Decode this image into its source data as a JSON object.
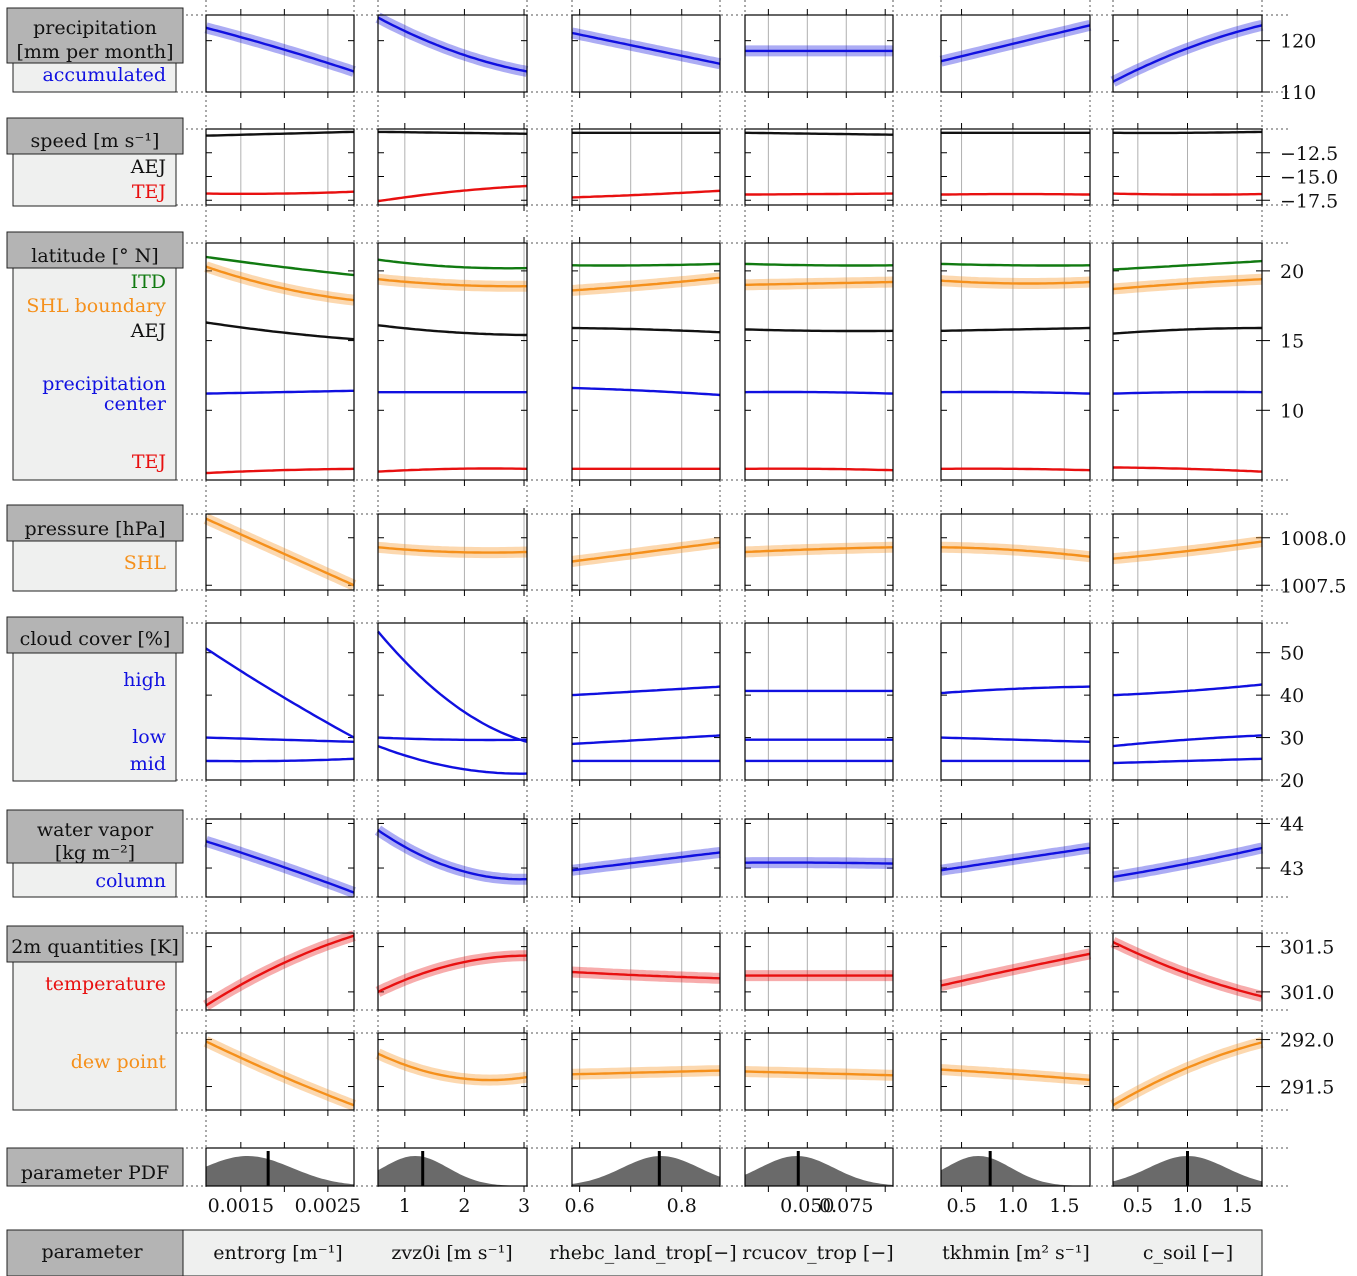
{
  "colors": {
    "blue": "#1010e0",
    "red": "#e81010",
    "green": "#117a11",
    "orange": "#f5901b",
    "black": "#111111",
    "gray": "#6a6a6a",
    "header_bg": "#b4b4b4",
    "panel_bg": "#eff0ef"
  },
  "groups": [
    {
      "id": "precip",
      "title": [
        "precipitation",
        "[mm per month]"
      ],
      "sublabels": [
        {
          "text": "accumulated",
          "color": "blue"
        }
      ]
    },
    {
      "id": "speed",
      "title": [
        "speed [m s⁻¹]"
      ],
      "sublabels": [
        {
          "text": "AEJ",
          "color": "black"
        },
        {
          "text": "TEJ",
          "color": "red"
        }
      ]
    },
    {
      "id": "lat",
      "title": [
        "latitude [° N]"
      ],
      "sublabels": [
        {
          "text": "ITD",
          "color": "green"
        },
        {
          "text": "SHL boundary",
          "color": "orange"
        },
        {
          "text": "AEJ",
          "color": "black"
        },
        {
          "text": "precipitation",
          "color": "blue"
        },
        {
          "text": "center",
          "color": "blue"
        },
        {
          "text": "TEJ",
          "color": "red"
        }
      ]
    },
    {
      "id": "pres",
      "title": [
        "pressure [hPa]"
      ],
      "sublabels": [
        {
          "text": "SHL",
          "color": "orange"
        }
      ]
    },
    {
      "id": "cloud",
      "title": [
        "cloud cover [%]"
      ],
      "sublabels": [
        {
          "text": "high",
          "color": "blue"
        },
        {
          "text": "low",
          "color": "blue"
        },
        {
          "text": "mid",
          "color": "blue"
        }
      ]
    },
    {
      "id": "wv",
      "title": [
        "water vapor",
        "[kg m⁻²]"
      ],
      "sublabels": [
        {
          "text": "column",
          "color": "blue"
        }
      ]
    },
    {
      "id": "t2m",
      "title": [
        "2m quantities [K]"
      ],
      "sublabels": [
        {
          "text": "temperature",
          "color": "red"
        },
        {
          "text": "dew point",
          "color": "orange"
        }
      ]
    },
    {
      "id": "pdf",
      "title": [
        "parameter PDF"
      ],
      "sublabels": []
    }
  ],
  "bottom_bar": {
    "label": "parameter",
    "params": [
      "entrorg [m⁻¹]",
      "zvz0i [m s⁻¹]",
      "rhebc_land_trop[−]",
      "rcucov_trop [−]",
      "tkhmin [m² s⁻¹]",
      "c_soil [−]"
    ]
  },
  "chart_data": [
    {
      "type": "line",
      "panel": "precipitation",
      "ylim": [
        110,
        125
      ],
      "yticks": [
        110,
        120
      ],
      "series": [
        {
          "color": "blue",
          "band": true,
          "values": [
            [
              122.5,
              118.5,
              114.0
            ],
            [
              124.5,
              118.0,
              114.0
            ],
            [
              121.5,
              118.5,
              115.5
            ],
            [
              118.0,
              118.0,
              118.0
            ],
            [
              116.0,
              119.5,
              123.0
            ],
            [
              112.0,
              118.5,
              123.0
            ]
          ]
        }
      ]
    },
    {
      "type": "line",
      "panel": "speed",
      "ylim": [
        -18,
        -10
      ],
      "yticks": [
        -12.5,
        -15.0,
        -17.5
      ],
      "series": [
        {
          "color": "black",
          "values": [
            [
              -10.7,
              -10.5,
              -10.3
            ],
            [
              -10.3,
              -10.4,
              -10.5
            ],
            [
              -10.4,
              -10.4,
              -10.4
            ],
            [
              -10.4,
              -10.5,
              -10.6
            ],
            [
              -10.4,
              -10.4,
              -10.4
            ],
            [
              -10.4,
              -10.4,
              -10.3
            ]
          ]
        },
        {
          "color": "red",
          "values": [
            [
              -16.8,
              -16.8,
              -16.6
            ],
            [
              -17.6,
              -16.6,
              -16.0
            ],
            [
              -17.2,
              -16.9,
              -16.5
            ],
            [
              -16.9,
              -16.85,
              -16.8
            ],
            [
              -16.9,
              -16.85,
              -16.9
            ],
            [
              -16.8,
              -16.9,
              -16.85
            ]
          ]
        }
      ]
    },
    {
      "type": "line",
      "panel": "latitude",
      "ylim": [
        5,
        22
      ],
      "yticks": [
        10,
        15,
        20
      ],
      "series": [
        {
          "color": "green",
          "values": [
            [
              21.0,
              20.3,
              19.7
            ],
            [
              20.8,
              20.3,
              20.2
            ],
            [
              20.4,
              20.4,
              20.5
            ],
            [
              20.5,
              20.4,
              20.4
            ],
            [
              20.5,
              20.4,
              20.4
            ],
            [
              20.1,
              20.4,
              20.7
            ]
          ]
        },
        {
          "color": "orange",
          "band": true,
          "values": [
            [
              20.3,
              18.8,
              17.9
            ],
            [
              19.4,
              19.0,
              18.9
            ],
            [
              18.6,
              19.0,
              19.5
            ],
            [
              19.0,
              19.1,
              19.2
            ],
            [
              19.3,
              19.1,
              19.2
            ],
            [
              18.7,
              19.1,
              19.4
            ]
          ]
        },
        {
          "color": "black",
          "values": [
            [
              16.3,
              15.6,
              15.1
            ],
            [
              16.1,
              15.6,
              15.4
            ],
            [
              15.9,
              15.8,
              15.6
            ],
            [
              15.8,
              15.7,
              15.7
            ],
            [
              15.7,
              15.8,
              15.9
            ],
            [
              15.5,
              15.8,
              15.9
            ]
          ]
        },
        {
          "color": "blue",
          "values": [
            [
              11.2,
              11.3,
              11.4
            ],
            [
              11.3,
              11.3,
              11.3
            ],
            [
              11.6,
              11.4,
              11.1
            ],
            [
              11.3,
              11.3,
              11.2
            ],
            [
              11.3,
              11.3,
              11.2
            ],
            [
              11.2,
              11.3,
              11.3
            ]
          ]
        },
        {
          "color": "red",
          "values": [
            [
              5.5,
              5.7,
              5.8
            ],
            [
              5.6,
              5.8,
              5.8
            ],
            [
              5.8,
              5.8,
              5.8
            ],
            [
              5.8,
              5.8,
              5.7
            ],
            [
              5.8,
              5.8,
              5.7
            ],
            [
              5.9,
              5.8,
              5.6
            ]
          ]
        }
      ]
    },
    {
      "type": "line",
      "panel": "pressure",
      "ylim": [
        1007.45,
        1008.25
      ],
      "yticks": [
        1008.0,
        1007.5
      ],
      "series": [
        {
          "color": "orange",
          "band": true,
          "values": [
            [
              1008.2,
              1007.85,
              1007.5
            ],
            [
              1007.9,
              1007.85,
              1007.85
            ],
            [
              1007.75,
              1007.85,
              1007.95
            ],
            [
              1007.85,
              1007.88,
              1007.9
            ],
            [
              1007.9,
              1007.87,
              1007.8
            ],
            [
              1007.78,
              1007.86,
              1007.96
            ]
          ]
        }
      ]
    },
    {
      "type": "line",
      "panel": "cloud cover",
      "ylim": [
        20,
        57
      ],
      "yticks": [
        20,
        30,
        40,
        50
      ],
      "series": [
        {
          "color": "blue",
          "name": "high",
          "values": [
            [
              51,
              40,
              30
            ],
            [
              55,
              38,
              29
            ],
            [
              40,
              41,
              42
            ],
            [
              41,
              41,
              41
            ],
            [
              40.5,
              41.5,
              42
            ],
            [
              40,
              41,
              42.5
            ]
          ]
        },
        {
          "color": "blue",
          "name": "low",
          "values": [
            [
              30,
              29.5,
              29
            ],
            [
              30,
              29.5,
              29.5
            ],
            [
              28.5,
              29.5,
              30.5
            ],
            [
              29.5,
              29.5,
              29.5
            ],
            [
              30,
              29.5,
              29
            ],
            [
              28,
              29.5,
              30.5
            ]
          ]
        },
        {
          "color": "blue",
          "name": "mid",
          "values": [
            [
              24.5,
              24.5,
              25
            ],
            [
              28,
              23,
              21.5
            ],
            [
              24.5,
              24.5,
              24.5
            ],
            [
              24.5,
              24.5,
              24.5
            ],
            [
              24.5,
              24.5,
              24.5
            ],
            [
              24,
              24.5,
              25
            ]
          ]
        }
      ]
    },
    {
      "type": "line",
      "panel": "water vapor",
      "ylim": [
        42.35,
        44.1
      ],
      "yticks": [
        43,
        44
      ],
      "series": [
        {
          "color": "blue",
          "band": true,
          "values": [
            [
              43.6,
              43.05,
              42.45
            ],
            [
              43.85,
              43.0,
              42.75
            ],
            [
              42.95,
              43.15,
              43.35
            ],
            [
              43.12,
              43.12,
              43.1
            ],
            [
              42.95,
              43.2,
              43.45
            ],
            [
              42.8,
              43.1,
              43.45
            ]
          ]
        }
      ]
    },
    {
      "type": "line",
      "panel": "2m temperature",
      "ylim": [
        300.8,
        301.65
      ],
      "yticks": [
        301.0,
        301.5
      ],
      "series": [
        {
          "color": "red",
          "band": true,
          "values": [
            [
              300.85,
              301.3,
              301.62
            ],
            [
              301.0,
              301.3,
              301.4
            ],
            [
              301.22,
              301.18,
              301.15
            ],
            [
              301.18,
              301.18,
              301.18
            ],
            [
              301.07,
              301.25,
              301.42
            ],
            [
              301.55,
              301.2,
              300.95
            ]
          ]
        }
      ]
    },
    {
      "type": "line",
      "panel": "dew point",
      "ylim": [
        291.25,
        292.07
      ],
      "yticks": [
        292.0,
        291.5
      ],
      "series": [
        {
          "color": "orange",
          "band": true,
          "values": [
            [
              291.98,
              291.62,
              291.3
            ],
            [
              291.85,
              291.6,
              291.6
            ],
            [
              291.63,
              291.65,
              291.67
            ],
            [
              291.66,
              291.64,
              291.62
            ],
            [
              291.68,
              291.63,
              291.57
            ],
            [
              291.3,
              291.7,
              291.97
            ]
          ]
        }
      ]
    },
    {
      "type": "area",
      "panel": "parameter PDF",
      "peaks": [
        0.28,
        0.25,
        0.6,
        0.35,
        0.25,
        0.5
      ],
      "widths": [
        0.3,
        0.22,
        0.26,
        0.25,
        0.22,
        0.26
      ],
      "markers": [
        0.42,
        0.3,
        0.59,
        0.36,
        0.33,
        0.5
      ]
    }
  ],
  "x_axes": [
    {
      "param": "entrorg",
      "range": [
        0.0011,
        0.0028
      ],
      "ticks": [
        0.0015,
        0.0025
      ],
      "minor_ticks": [
        0.0015,
        0.002,
        0.0025
      ]
    },
    {
      "param": "zvz0i",
      "range": [
        0.55,
        3.05
      ],
      "ticks": [
        1,
        2,
        3
      ],
      "minor_ticks": [
        1,
        2,
        3
      ]
    },
    {
      "param": "rhebc_land_trop",
      "range": [
        0.585,
        0.875
      ],
      "ticks": [
        0.6,
        0.8
      ],
      "minor_ticks": [
        0.6,
        0.7,
        0.8
      ]
    },
    {
      "param": "rcucov_trop",
      "range": [
        0.01,
        0.105
      ],
      "ticks": [
        0.05,
        0.075
      ],
      "minor_ticks": [
        0.025,
        0.05,
        0.075,
        0.1
      ]
    },
    {
      "param": "tkhmin",
      "range": [
        0.3,
        1.75
      ],
      "ticks": [
        0.5,
        1.0,
        1.5
      ],
      "minor_ticks": [
        0.5,
        1.0,
        1.5
      ]
    },
    {
      "param": "c_soil",
      "range": [
        0.25,
        1.75
      ],
      "ticks": [
        0.5,
        1.0,
        1.5
      ],
      "minor_ticks": [
        0.5,
        1.0,
        1.5
      ]
    }
  ]
}
